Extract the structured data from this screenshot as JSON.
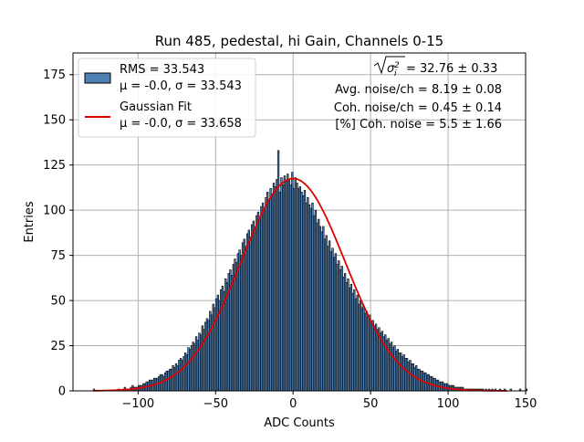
{
  "chart_data": {
    "type": "bar",
    "title": "Run 485, pedestal, hi Gain, Channels 0-15",
    "xlabel": "ADC Counts",
    "ylabel": "Entries",
    "xlim": [
      -142,
      150
    ],
    "ylim": [
      0,
      187
    ],
    "grid": true,
    "x_ticks": [
      -100,
      -50,
      0,
      50,
      100,
      150
    ],
    "x_tick_labels": [
      "−100",
      "−50",
      "0",
      "50",
      "100",
      "150"
    ],
    "y_ticks": [
      0,
      25,
      50,
      75,
      100,
      125,
      150,
      175
    ],
    "y_tick_labels": [
      "0",
      "25",
      "50",
      "75",
      "100",
      "125",
      "150",
      "175"
    ],
    "series": [
      {
        "name": "RMS = 33.543",
        "stats": "μ = -0.0, σ = 33.543",
        "kind": "histogram",
        "color": "#4f81b5",
        "edge_color": "#000000",
        "bins": {
          "start": -129,
          "end": 138,
          "width": 1
        },
        "values": [
          1,
          0,
          0,
          0,
          0,
          0,
          0,
          0,
          0,
          0,
          0,
          0,
          0,
          0,
          0,
          0,
          1,
          0,
          0,
          1,
          2,
          1,
          1,
          1,
          2,
          3,
          2,
          2,
          2,
          3,
          3,
          3,
          4,
          4,
          5,
          5,
          6,
          6,
          6,
          7,
          7,
          7,
          8,
          9,
          9,
          8,
          10,
          11,
          11,
          12,
          12,
          14,
          13,
          15,
          14,
          17,
          18,
          17,
          19,
          21,
          20,
          24,
          23,
          25,
          27,
          26,
          30,
          28,
          32,
          31,
          36,
          34,
          38,
          40,
          39,
          44,
          42,
          48,
          46,
          51,
          53,
          50,
          56,
          58,
          55,
          62,
          60,
          65,
          67,
          64,
          70,
          73,
          71,
          76,
          78,
          75,
          82,
          84,
          80,
          87,
          89,
          85,
          92,
          94,
          90,
          97,
          99,
          95,
          102,
          104,
          100,
          107,
          110,
          105,
          112,
          109,
          115,
          113,
          117,
          133,
          110,
          118,
          114,
          119,
          116,
          120,
          117,
          114,
          121,
          112,
          118,
          115,
          112,
          113,
          110,
          108,
          111,
          104,
          107,
          103,
          101,
          104,
          97,
          100,
          93,
          95,
          91,
          88,
          91,
          84,
          86,
          80,
          83,
          77,
          79,
          74,
          76,
          70,
          72,
          67,
          69,
          63,
          65,
          60,
          62,
          57,
          59,
          54,
          56,
          51,
          53,
          48,
          50,
          46,
          47,
          43,
          44,
          41,
          42,
          38,
          39,
          36,
          37,
          34,
          35,
          32,
          33,
          30,
          31,
          28,
          29,
          26,
          27,
          24,
          25,
          22,
          23,
          21,
          21,
          19,
          20,
          18,
          18,
          16,
          17,
          15,
          15,
          13,
          14,
          12,
          12,
          11,
          11,
          10,
          10,
          9,
          9,
          8,
          8,
          7,
          7,
          6,
          6,
          5,
          5,
          5,
          4,
          4,
          4,
          3,
          3,
          3,
          3,
          2,
          2,
          2,
          2,
          2,
          2,
          1,
          1,
          1,
          1,
          1,
          1,
          1,
          1,
          1,
          1,
          1,
          1,
          1,
          0,
          1,
          0,
          1,
          0,
          1,
          0,
          1,
          0,
          0,
          1,
          0,
          0,
          1,
          0,
          0,
          0,
          1,
          0,
          0,
          0,
          0,
          0,
          1,
          0,
          0,
          0,
          1
        ]
      },
      {
        "name": "Gaussian Fit",
        "stats": "μ = -0.0, σ = 33.658",
        "kind": "line",
        "color": "#e00000",
        "function": "gaussian",
        "amplitude": 117.5,
        "mu": 0.0,
        "sigma": 33.658,
        "x_range": [
          -129,
          138
        ]
      }
    ],
    "legend_position": "top-left",
    "annotations": [
      {
        "type": "sigma-sqrt",
        "value": " = 32.76 ± 0.33"
      },
      {
        "type": "text",
        "text": "Avg. noise/ch = 8.19 ± 0.08"
      },
      {
        "type": "text",
        "text": "Coh. noise/ch = 0.45 ± 0.14"
      },
      {
        "type": "text",
        "text": "[%] Coh. noise = 5.5 ± 1.66"
      }
    ],
    "colors": {
      "grid": "#b0b0b0",
      "axes": "#000000",
      "legend_border": "#d0d0d0"
    }
  }
}
